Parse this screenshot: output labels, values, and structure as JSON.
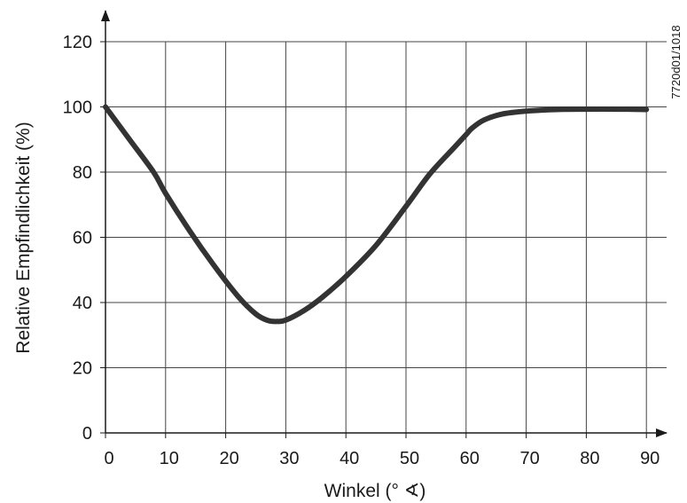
{
  "chart_data": {
    "type": "line",
    "title": "",
    "xlabel": "Winkel (° ∢)",
    "ylabel": "Relative Empfindlichkeit (%)",
    "xlim": [
      0,
      90
    ],
    "ylim": [
      0,
      120
    ],
    "xticks": [
      0,
      10,
      20,
      30,
      40,
      50,
      60,
      70,
      80,
      90
    ],
    "yticks": [
      0,
      20,
      40,
      60,
      80,
      100,
      120
    ],
    "grid": true,
    "legend": "none",
    "series": [
      {
        "color": "#333333",
        "x": [
          0,
          4,
          8,
          10,
          14,
          18,
          22,
          25,
          27,
          28.5,
          30,
          33,
          36,
          40,
          45,
          50,
          54,
          58,
          60,
          61,
          63,
          66,
          70,
          75,
          80,
          85,
          90
        ],
        "y": [
          100,
          90,
          80,
          73.5,
          62,
          51.5,
          42,
          36.5,
          34.5,
          34.2,
          34.6,
          37.5,
          41.5,
          48,
          57.5,
          69.5,
          79.5,
          87.5,
          91.5,
          93.5,
          96,
          97.8,
          98.7,
          99.2,
          99.3,
          99.3,
          99.2
        ]
      }
    ]
  },
  "side_code": "7720d01/1018"
}
